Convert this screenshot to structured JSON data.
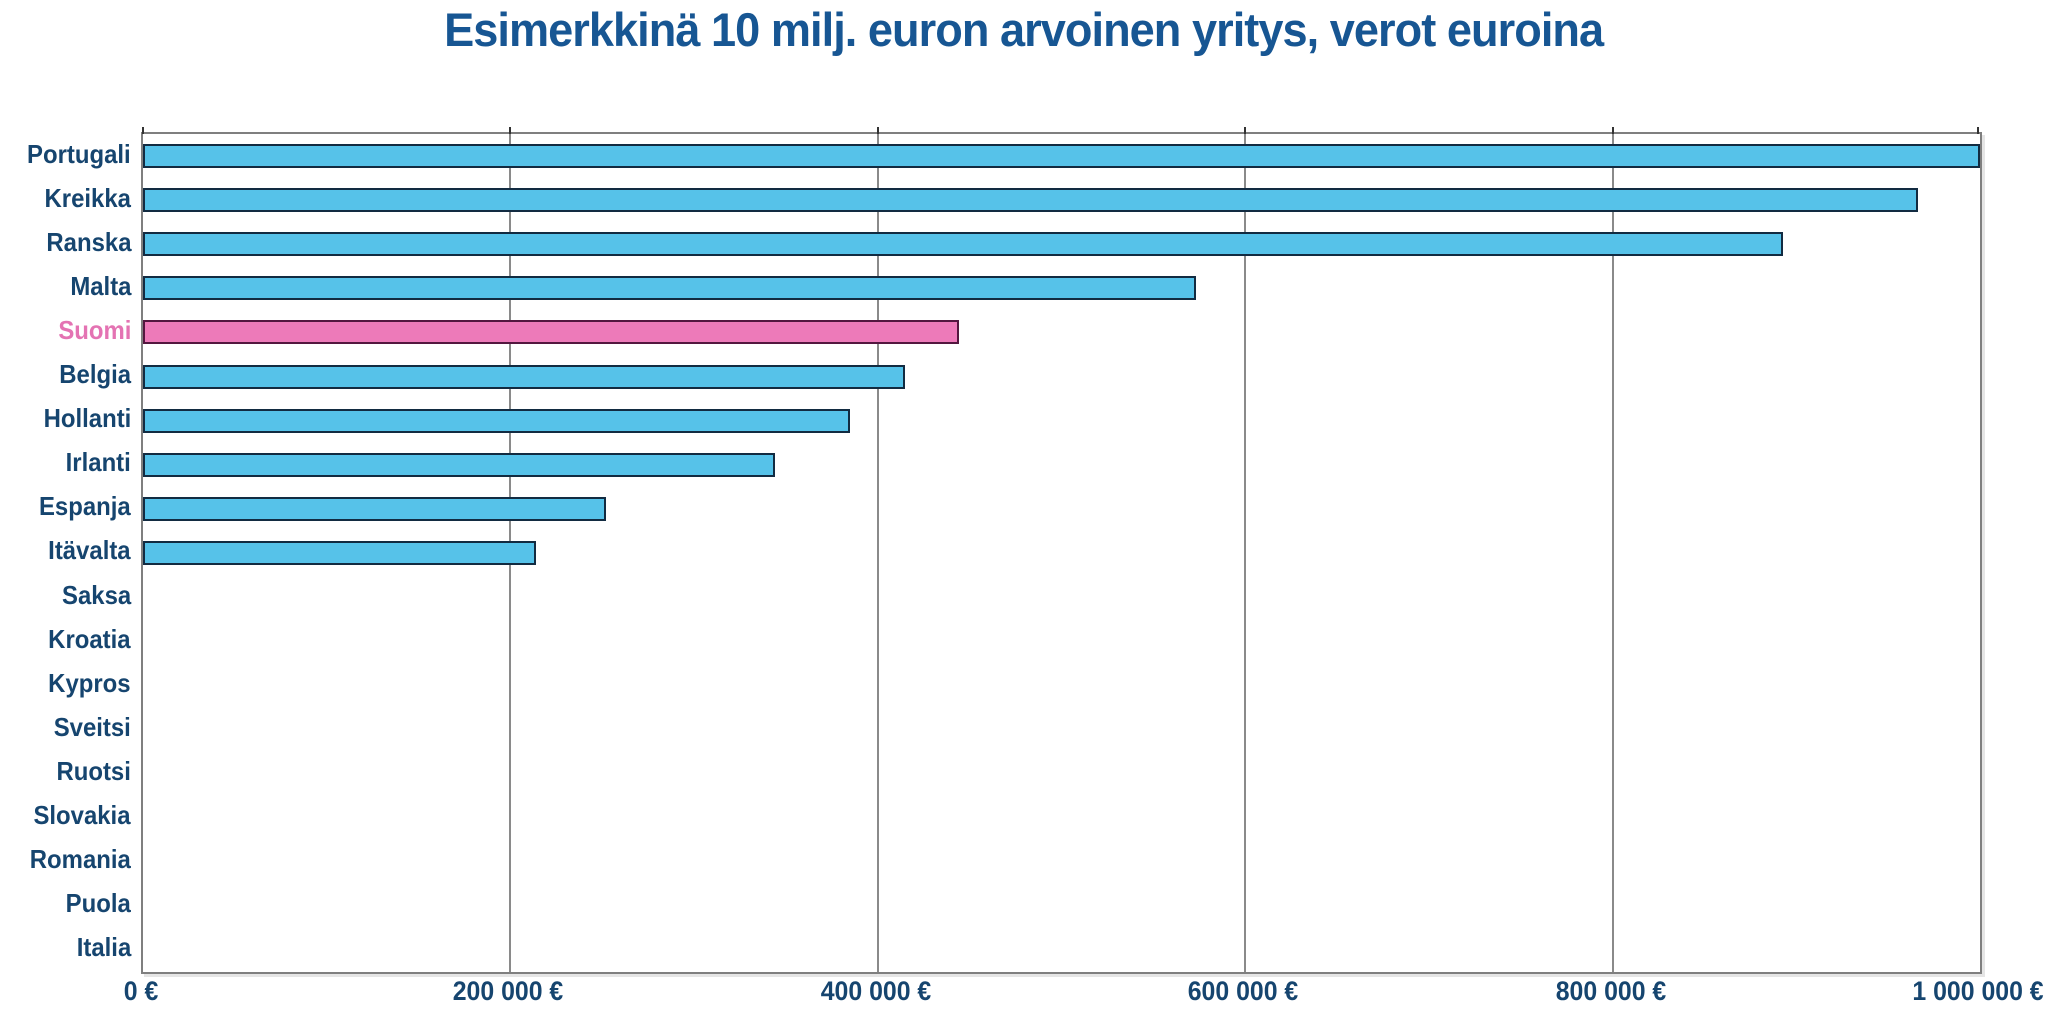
{
  "chart_data": {
    "type": "bar",
    "orientation": "horizontal",
    "title": "Esimerkkinä 10 milj. euron arvoinen yritys, verot euroina",
    "categories": [
      "Portugali",
      "Kreikka",
      "Ranska",
      "Malta",
      "Suomi",
      "Belgia",
      "Hollanti",
      "Irlanti",
      "Espanja",
      "Itävalta",
      "Saksa",
      "Kroatia",
      "Kypros",
      "Sveitsi",
      "Ruotsi",
      "Slovakia",
      "Romania",
      "Puola",
      "Italia"
    ],
    "values": [
      1000000,
      966000,
      893000,
      573000,
      444000,
      415000,
      385000,
      344000,
      252000,
      214000,
      0,
      0,
      0,
      0,
      0,
      0,
      0,
      0,
      0
    ],
    "highlight_category": "Suomi",
    "x_ticks": [
      "0 €",
      "200 000 €",
      "400 000 €",
      "600 000 €",
      "800 000 €",
      "1 000 000 €"
    ],
    "x_tick_values": [
      0,
      200000,
      400000,
      600000,
      800000,
      1000000
    ],
    "xlim": [
      0,
      1000000
    ],
    "xlabel": "",
    "ylabel": "",
    "grid": true,
    "legend": "none",
    "colors": {
      "bar": "#56c2e9",
      "bar_border": "#122b41",
      "bar_highlight": "#ed7ab9",
      "bar_highlight_border": "#53173f",
      "title_text": "#175693",
      "label_text": "#16456f",
      "highlight_label_text": "#e473b3",
      "gridline": "#8a8a8a",
      "tick": "#333333",
      "plot_border": "#7f7f7f",
      "background": "#ffffff"
    }
  }
}
